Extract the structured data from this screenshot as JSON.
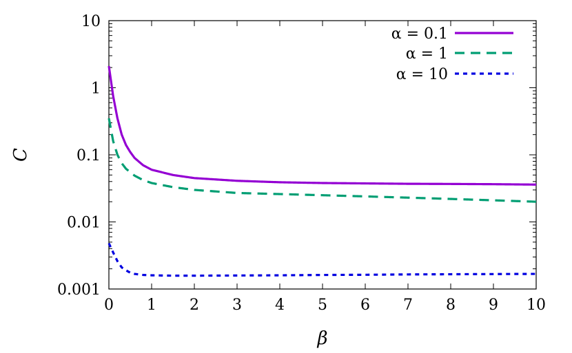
{
  "chart_data": {
    "type": "line",
    "xlabel": "β",
    "ylabel": "C",
    "xlim": [
      0,
      10
    ],
    "ylim": [
      0.001,
      10
    ],
    "yscale": "log",
    "xticks": [
      "0",
      "1",
      "2",
      "3",
      "4",
      "5",
      "6",
      "7",
      "8",
      "9",
      "10"
    ],
    "yticks": [
      "0.001",
      "0.01",
      "0.1",
      "1",
      "10"
    ],
    "grid": false,
    "legend_position": "top-right",
    "series": [
      {
        "name": "α = 0.1",
        "color": "#9400d3",
        "dash": "solid",
        "x": [
          0,
          0.1,
          0.2,
          0.3,
          0.4,
          0.5,
          0.6,
          0.8,
          1.0,
          1.5,
          2,
          3,
          4,
          5,
          6,
          7,
          8,
          9,
          10
        ],
        "y": [
          2.1,
          0.75,
          0.35,
          0.2,
          0.14,
          0.11,
          0.09,
          0.07,
          0.06,
          0.05,
          0.045,
          0.041,
          0.039,
          0.038,
          0.0375,
          0.037,
          0.0368,
          0.0365,
          0.036
        ]
      },
      {
        "name": "α = 1",
        "color": "#009e73",
        "dash": "dash",
        "x": [
          0,
          0.1,
          0.2,
          0.3,
          0.4,
          0.5,
          0.6,
          0.8,
          1.0,
          1.5,
          2,
          3,
          4,
          5,
          6,
          7,
          8,
          9,
          10
        ],
        "y": [
          0.35,
          0.16,
          0.1,
          0.075,
          0.062,
          0.055,
          0.049,
          0.042,
          0.038,
          0.033,
          0.03,
          0.027,
          0.026,
          0.025,
          0.024,
          0.023,
          0.022,
          0.021,
          0.02
        ]
      },
      {
        "name": "α = 10",
        "color": "#0000e0",
        "dash": "dot",
        "x": [
          0,
          0.1,
          0.2,
          0.3,
          0.4,
          0.5,
          0.6,
          0.8,
          1.0,
          1.5,
          2,
          3,
          4,
          5,
          6,
          7,
          8,
          9,
          10
        ],
        "y": [
          0.0048,
          0.0035,
          0.0026,
          0.0021,
          0.0019,
          0.00175,
          0.00168,
          0.00162,
          0.0016,
          0.00158,
          0.00158,
          0.00159,
          0.0016,
          0.00162,
          0.00163,
          0.00165,
          0.00166,
          0.00167,
          0.00168
        ]
      }
    ]
  }
}
